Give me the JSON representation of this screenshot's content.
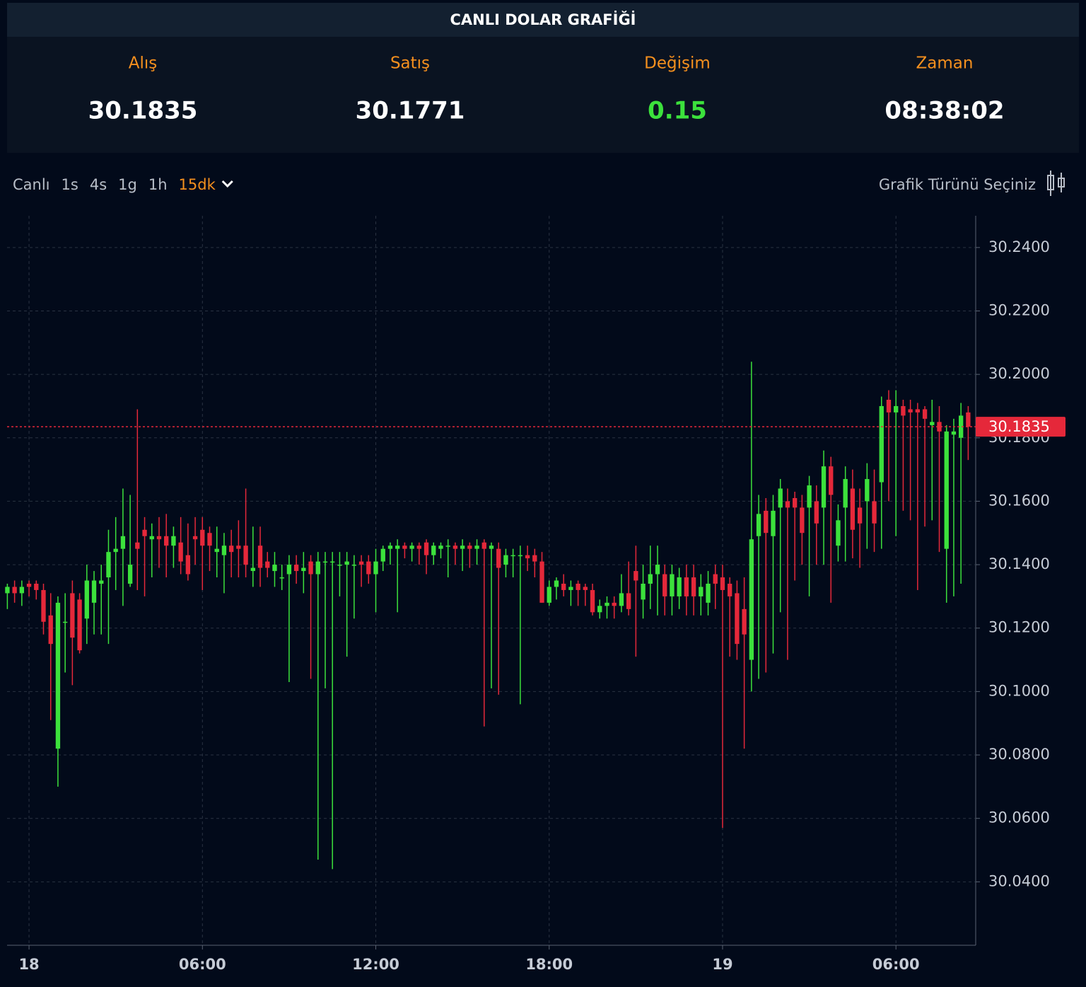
{
  "header": {
    "title": "CANLI DOLAR GRAFİĞİ"
  },
  "stats": [
    {
      "label": "Alış",
      "value": "30.1835",
      "color": "#ffffff"
    },
    {
      "label": "Satış",
      "value": "30.1771",
      "color": "#ffffff"
    },
    {
      "label": "Değişim",
      "value": "0.15",
      "color": "#3ce13c"
    },
    {
      "label": "Zaman",
      "value": "08:38:02",
      "color": "#ffffff"
    }
  ],
  "toolbar": {
    "intervals": [
      "Canlı",
      "1s",
      "4s",
      "1g",
      "1h",
      "15dk"
    ],
    "active": 5,
    "chart_type_label": "Grafik Türünü Seçiniz"
  },
  "chart_data": {
    "type": "candlestick",
    "up_color": "#3ce13c",
    "down_color": "#e5283a",
    "grid": true,
    "xlim": [
      -0.76,
      32.76
    ],
    "xticks": [
      {
        "value": 0,
        "label": "18"
      },
      {
        "value": 6,
        "label": "06:00"
      },
      {
        "value": 12,
        "label": "12:00"
      },
      {
        "value": 18,
        "label": "18:00"
      },
      {
        "value": 24,
        "label": "19"
      },
      {
        "value": 30,
        "label": "06:00"
      }
    ],
    "ylim": [
      30.02,
      30.25
    ],
    "yticks": [
      {
        "value": 30.24,
        "label": "30.2400"
      },
      {
        "value": 30.22,
        "label": "30.2200"
      },
      {
        "value": 30.2,
        "label": "30.2000"
      },
      {
        "value": 30.18,
        "label": "30.1800"
      },
      {
        "value": 30.16,
        "label": "30.1600"
      },
      {
        "value": 30.14,
        "label": "30.1400"
      },
      {
        "value": 30.12,
        "label": "30.1200"
      },
      {
        "value": 30.1,
        "label": "30.1000"
      },
      {
        "value": 30.08,
        "label": "30.0800"
      },
      {
        "value": 30.06,
        "label": "30.0600"
      },
      {
        "value": 30.04,
        "label": "30.0400"
      }
    ],
    "price_line": 30.1835,
    "x": [
      -0.75,
      -0.5,
      -0.25,
      0,
      0.25,
      0.5,
      0.75,
      1,
      1.25,
      1.5,
      1.75,
      2,
      2.25,
      2.5,
      2.75,
      3,
      3.25,
      3.5,
      3.75,
      4,
      4.25,
      4.5,
      4.75,
      5,
      5.25,
      5.5,
      5.75,
      6,
      6.25,
      6.5,
      6.75,
      7,
      7.25,
      7.5,
      7.75,
      8,
      8.25,
      8.5,
      8.75,
      9,
      9.25,
      9.5,
      9.75,
      10,
      10.25,
      10.5,
      10.75,
      11,
      11.25,
      11.5,
      11.75,
      12,
      12.25,
      12.5,
      12.75,
      13,
      13.25,
      13.5,
      13.75,
      14,
      14.25,
      14.5,
      14.75,
      15,
      15.25,
      15.5,
      15.75,
      16,
      16.25,
      16.5,
      16.75,
      17,
      17.25,
      17.5,
      17.75,
      18,
      18.25,
      18.5,
      18.75,
      19,
      19.25,
      19.5,
      19.75,
      20,
      20.25,
      20.5,
      20.75,
      21,
      21.25,
      21.5,
      21.75,
      22,
      22.25,
      22.5,
      22.75,
      23,
      23.25,
      23.5,
      23.75,
      24,
      24.25,
      24.5,
      24.75,
      25,
      25.25,
      25.5,
      25.75,
      26,
      26.25,
      26.5,
      26.75,
      27,
      27.25,
      27.5,
      27.75,
      28,
      28.25,
      28.5,
      28.75,
      29,
      29.25,
      29.5,
      29.75,
      30,
      30.25,
      30.5,
      30.75,
      31,
      31.25,
      31.5,
      31.75,
      32,
      32.25,
      32.5
    ],
    "open": [
      30.131,
      30.133,
      30.131,
      30.134,
      30.134,
      30.132,
      30.124,
      30.082,
      30.122,
      30.131,
      30.129,
      30.123,
      30.128,
      30.134,
      30.136,
      30.144,
      30.145,
      30.134,
      30.147,
      30.151,
      30.148,
      30.149,
      30.149,
      30.146,
      30.147,
      30.143,
      30.149,
      30.151,
      30.15,
      30.144,
      30.143,
      30.146,
      30.146,
      30.146,
      30.138,
      30.146,
      30.141,
      30.138,
      30.136,
      30.137,
      30.14,
      30.138,
      30.141,
      30.137,
      30.141,
      30.141,
      30.14,
      30.14,
      30.14,
      30.141,
      30.141,
      30.137,
      30.141,
      30.145,
      30.145,
      30.146,
      30.145,
      30.146,
      30.147,
      30.143,
      30.145,
      30.146,
      30.146,
      30.145,
      30.146,
      30.145,
      30.147,
      30.145,
      30.145,
      30.14,
      30.143,
      30.143,
      30.143,
      30.143,
      30.141,
      30.128,
      30.133,
      30.134,
      30.132,
      30.134,
      30.133,
      30.132,
      30.125,
      30.127,
      30.128,
      30.127,
      30.131,
      30.138,
      30.129,
      30.134,
      30.137,
      30.137,
      30.13,
      30.13,
      30.136,
      30.136,
      30.13,
      30.128,
      30.137,
      30.136,
      30.134,
      30.131,
      30.126,
      30.11,
      30.149,
      30.157,
      30.149,
      30.158,
      30.16,
      30.161,
      30.158,
      30.158,
      30.16,
      30.158,
      30.171,
      30.146,
      30.158,
      30.164,
      30.158,
      30.16,
      30.16,
      30.166,
      30.192,
      30.188,
      30.19,
      30.189,
      30.189,
      30.189,
      30.184,
      30.185,
      30.145,
      30.181,
      30.18,
      30.188
    ],
    "high": [
      30.134,
      30.135,
      30.135,
      30.135,
      30.135,
      30.134,
      30.131,
      30.13,
      30.131,
      30.135,
      30.131,
      30.14,
      30.138,
      30.14,
      30.151,
      30.155,
      30.164,
      30.162,
      30.189,
      30.155,
      30.153,
      30.155,
      30.156,
      30.152,
      30.155,
      30.153,
      30.155,
      30.155,
      30.152,
      30.152,
      30.15,
      30.151,
      30.154,
      30.164,
      30.152,
      30.152,
      30.144,
      30.144,
      30.14,
      30.143,
      30.143,
      30.144,
      30.143,
      30.144,
      30.144,
      30.144,
      30.144,
      30.144,
      30.143,
      30.143,
      30.143,
      30.145,
      30.146,
      30.147,
      30.148,
      30.147,
      30.147,
      30.147,
      30.148,
      30.147,
      30.147,
      30.148,
      30.147,
      30.148,
      30.147,
      30.148,
      30.148,
      30.147,
      30.147,
      30.145,
      30.145,
      30.146,
      30.146,
      30.145,
      30.144,
      30.135,
      30.136,
      30.137,
      30.135,
      30.135,
      30.134,
      30.134,
      30.129,
      30.13,
      30.13,
      30.137,
      30.141,
      30.146,
      30.14,
      30.146,
      30.146,
      30.14,
      30.14,
      30.139,
      30.14,
      30.14,
      30.137,
      30.138,
      30.14,
      30.14,
      30.136,
      30.135,
      30.136,
      30.204,
      30.162,
      30.161,
      30.162,
      30.167,
      30.164,
      30.163,
      30.162,
      30.168,
      30.165,
      30.176,
      30.174,
      30.159,
      30.171,
      30.17,
      30.164,
      30.172,
      30.17,
      30.193,
      30.195,
      30.195,
      30.192,
      30.192,
      30.191,
      30.19,
      30.192,
      30.19,
      30.184,
      30.186,
      30.191,
      30.19
    ],
    "low": [
      30.126,
      30.128,
      30.127,
      30.13,
      30.129,
      30.118,
      30.091,
      30.07,
      30.106,
      30.102,
      30.112,
      30.115,
      30.118,
      30.118,
      30.115,
      30.132,
      30.127,
      30.133,
      30.132,
      30.13,
      30.136,
      30.139,
      30.136,
      30.139,
      30.137,
      30.135,
      30.14,
      30.132,
      30.138,
      30.136,
      30.131,
      30.136,
      30.136,
      30.136,
      30.133,
      30.133,
      30.136,
      30.133,
      30.132,
      30.103,
      30.134,
      30.131,
      30.104,
      30.047,
      30.101,
      30.044,
      30.13,
      30.111,
      30.123,
      30.133,
      30.134,
      30.125,
      30.138,
      30.14,
      30.125,
      30.142,
      30.141,
      30.14,
      30.137,
      30.14,
      30.142,
      30.136,
      30.14,
      30.138,
      30.139,
      30.14,
      30.089,
      30.101,
      30.099,
      30.136,
      30.136,
      30.096,
      30.138,
      30.136,
      30.128,
      30.127,
      30.129,
      30.13,
      30.127,
      30.127,
      30.127,
      30.124,
      30.123,
      30.123,
      30.123,
      30.125,
      30.124,
      30.111,
      30.123,
      30.126,
      30.124,
      30.124,
      30.124,
      30.126,
      30.124,
      30.124,
      30.124,
      30.124,
      30.126,
      30.057,
      30.111,
      30.11,
      30.082,
      30.1,
      30.104,
      30.106,
      30.112,
      30.125,
      30.11,
      30.135,
      30.14,
      30.13,
      30.14,
      30.14,
      30.128,
      30.141,
      30.141,
      30.142,
      30.139,
      30.145,
      30.144,
      30.145,
      30.16,
      30.149,
      30.157,
      30.154,
      30.132,
      30.152,
      30.154,
      30.144,
      30.128,
      30.13,
      30.134,
      30.173
    ],
    "close": [
      30.133,
      30.131,
      30.133,
      30.133,
      30.132,
      30.122,
      30.115,
      30.128,
      30.122,
      30.117,
      30.113,
      30.135,
      30.135,
      30.135,
      30.144,
      30.145,
      30.149,
      30.14,
      30.145,
      30.149,
      30.149,
      30.148,
      30.146,
      30.149,
      30.141,
      30.137,
      30.148,
      30.146,
      30.146,
      30.145,
      30.146,
      30.144,
      30.145,
      30.14,
      30.139,
      30.139,
      30.139,
      30.14,
      30.136,
      30.14,
      30.138,
      30.139,
      30.137,
      30.141,
      30.141,
      30.141,
      30.14,
      30.141,
      30.14,
      30.14,
      30.137,
      30.141,
      30.145,
      30.146,
      30.146,
      30.145,
      30.146,
      30.145,
      30.143,
      30.146,
      30.146,
      30.146,
      30.145,
      30.146,
      30.145,
      30.146,
      30.145,
      30.146,
      30.139,
      30.143,
      30.143,
      30.143,
      30.142,
      30.141,
      30.128,
      30.133,
      30.135,
      30.132,
      30.133,
      30.132,
      30.132,
      30.125,
      30.127,
      30.128,
      30.127,
      30.131,
      30.126,
      30.135,
      30.134,
      30.137,
      30.14,
      30.13,
      30.137,
      30.136,
      30.13,
      30.13,
      30.133,
      30.134,
      30.134,
      30.132,
      30.13,
      30.115,
      30.118,
      30.148,
      30.156,
      30.15,
      30.157,
      30.164,
      30.158,
      30.158,
      30.15,
      30.165,
      30.153,
      30.171,
      30.162,
      30.154,
      30.167,
      30.151,
      30.153,
      30.167,
      30.153,
      30.19,
      30.188,
      30.19,
      30.187,
      30.188,
      30.188,
      30.186,
      30.185,
      30.182,
      30.182,
      30.182,
      30.187,
      30.1835
    ]
  }
}
